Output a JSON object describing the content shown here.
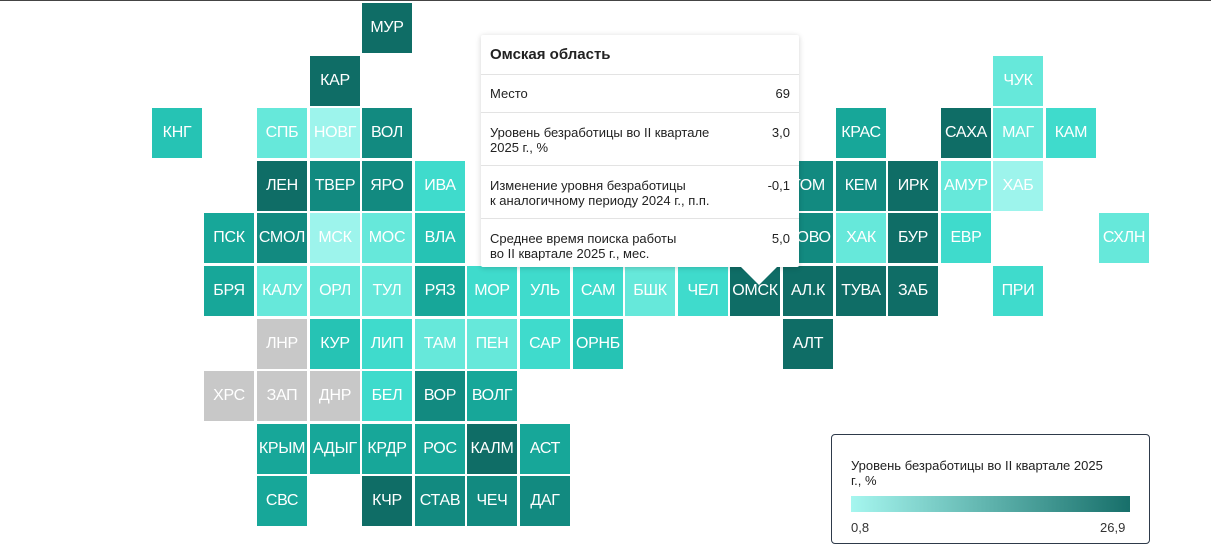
{
  "colors": {
    "c1": "#9df4ec",
    "c2": "#66e8da",
    "c3": "#3fdbcc",
    "c4": "#26c3b4",
    "c5": "#17a799",
    "c6": "#128a80",
    "c7": "#0f6d66",
    "gray": "#c8c8c8"
  },
  "tiles": [
    {
      "label": "МУР",
      "col": 7,
      "row": 0,
      "color": "c7"
    },
    {
      "label": "КАР",
      "col": 6,
      "row": 1,
      "color": "c7"
    },
    {
      "label": "ЧУК",
      "col": 19,
      "row": 1,
      "color": "c2"
    },
    {
      "label": "КНГ",
      "col": 3,
      "row": 2,
      "color": "c4"
    },
    {
      "label": "СПБ",
      "col": 5,
      "row": 2,
      "color": "c2"
    },
    {
      "label": "НОВГ",
      "col": 6,
      "row": 2,
      "color": "c1"
    },
    {
      "label": "ВОЛ",
      "col": 7,
      "row": 2,
      "color": "c6"
    },
    {
      "label": "КРАС",
      "col": 16,
      "row": 2,
      "color": "c5"
    },
    {
      "label": "САХА",
      "col": 18,
      "row": 2,
      "color": "c7"
    },
    {
      "label": "МАГ",
      "col": 19,
      "row": 2,
      "color": "c2"
    },
    {
      "label": "КАМ",
      "col": 20,
      "row": 2,
      "color": "c3"
    },
    {
      "label": "ЛЕН",
      "col": 5,
      "row": 3,
      "color": "c7"
    },
    {
      "label": "ТВЕР",
      "col": 6,
      "row": 3,
      "color": "c6"
    },
    {
      "label": "ЯРО",
      "col": 7,
      "row": 3,
      "color": "c6"
    },
    {
      "label": "ИВА",
      "col": 8,
      "row": 3,
      "color": "c3"
    },
    {
      "label": "ТОМ",
      "col": 15,
      "row": 3,
      "color": "c6"
    },
    {
      "label": "КЕМ",
      "col": 16,
      "row": 3,
      "color": "c6"
    },
    {
      "label": "ИРК",
      "col": 17,
      "row": 3,
      "color": "c7"
    },
    {
      "label": "АМУР",
      "col": 18,
      "row": 3,
      "color": "c2"
    },
    {
      "label": "ХАБ",
      "col": 19,
      "row": 3,
      "color": "c1"
    },
    {
      "label": "ПСК",
      "col": 4,
      "row": 4,
      "color": "c5"
    },
    {
      "label": "СМОЛ",
      "col": 5,
      "row": 4,
      "color": "c6"
    },
    {
      "label": "МСК",
      "col": 6,
      "row": 4,
      "color": "c1"
    },
    {
      "label": "МОС",
      "col": 7,
      "row": 4,
      "color": "c2"
    },
    {
      "label": "ВЛА",
      "col": 8,
      "row": 4,
      "color": "c4"
    },
    {
      "label": "НОВО",
      "col": 15,
      "row": 4,
      "color": "c6"
    },
    {
      "label": "ХАК",
      "col": 16,
      "row": 4,
      "color": "c2"
    },
    {
      "label": "БУР",
      "col": 17,
      "row": 4,
      "color": "c7"
    },
    {
      "label": "ЕВР",
      "col": 18,
      "row": 4,
      "color": "c3"
    },
    {
      "label": "СХЛН",
      "col": 21,
      "row": 4,
      "color": "c2"
    },
    {
      "label": "БРЯ",
      "col": 4,
      "row": 5,
      "color": "c5"
    },
    {
      "label": "КАЛУ",
      "col": 5,
      "row": 5,
      "color": "c2"
    },
    {
      "label": "ОРЛ",
      "col": 6,
      "row": 5,
      "color": "c2"
    },
    {
      "label": "ТУЛ",
      "col": 7,
      "row": 5,
      "color": "c2"
    },
    {
      "label": "РЯЗ",
      "col": 8,
      "row": 5,
      "color": "c5"
    },
    {
      "label": "МОР",
      "col": 9,
      "row": 5,
      "color": "c3"
    },
    {
      "label": "УЛЬ",
      "col": 10,
      "row": 5,
      "color": "c3"
    },
    {
      "label": "САМ",
      "col": 11,
      "row": 5,
      "color": "c3"
    },
    {
      "label": "БШК",
      "col": 12,
      "row": 5,
      "color": "c2"
    },
    {
      "label": "ЧЕЛ",
      "col": 13,
      "row": 5,
      "color": "c3"
    },
    {
      "label": "ОМСК",
      "col": 14,
      "row": 5,
      "color": "c7",
      "highlight": true
    },
    {
      "label": "АЛ.К",
      "col": 15,
      "row": 5,
      "color": "c7"
    },
    {
      "label": "ТУВА",
      "col": 16,
      "row": 5,
      "color": "c7"
    },
    {
      "label": "ЗАБ",
      "col": 17,
      "row": 5,
      "color": "c7"
    },
    {
      "label": "ПРИ",
      "col": 19,
      "row": 5,
      "color": "c3"
    },
    {
      "label": "ЛНР",
      "col": 5,
      "row": 6,
      "color": "gray"
    },
    {
      "label": "КУР",
      "col": 6,
      "row": 6,
      "color": "c4"
    },
    {
      "label": "ЛИП",
      "col": 7,
      "row": 6,
      "color": "c3"
    },
    {
      "label": "ТАМ",
      "col": 8,
      "row": 6,
      "color": "c2"
    },
    {
      "label": "ПЕН",
      "col": 9,
      "row": 6,
      "color": "c2"
    },
    {
      "label": "САР",
      "col": 10,
      "row": 6,
      "color": "c3"
    },
    {
      "label": "ОРНБ",
      "col": 11,
      "row": 6,
      "color": "c4"
    },
    {
      "label": "АЛТ",
      "col": 15,
      "row": 6,
      "color": "c7"
    },
    {
      "label": "ХРС",
      "col": 4,
      "row": 7,
      "color": "gray"
    },
    {
      "label": "ЗАП",
      "col": 5,
      "row": 7,
      "color": "gray"
    },
    {
      "label": "ДНР",
      "col": 6,
      "row": 7,
      "color": "gray"
    },
    {
      "label": "БЕЛ",
      "col": 7,
      "row": 7,
      "color": "c3"
    },
    {
      "label": "ВОР",
      "col": 8,
      "row": 7,
      "color": "c6"
    },
    {
      "label": "ВОЛГ",
      "col": 9,
      "row": 7,
      "color": "c5"
    },
    {
      "label": "КРЫМ",
      "col": 5,
      "row": 8,
      "color": "c5"
    },
    {
      "label": "АДЫГ",
      "col": 6,
      "row": 8,
      "color": "c5"
    },
    {
      "label": "КРДР",
      "col": 7,
      "row": 8,
      "color": "c5"
    },
    {
      "label": "РОС",
      "col": 8,
      "row": 8,
      "color": "c5"
    },
    {
      "label": "КАЛМ",
      "col": 9,
      "row": 8,
      "color": "c7"
    },
    {
      "label": "АСТ",
      "col": 10,
      "row": 8,
      "color": "c5"
    },
    {
      "label": "СВС",
      "col": 5,
      "row": 9,
      "color": "c5"
    },
    {
      "label": "КЧР",
      "col": 7,
      "row": 9,
      "color": "c7"
    },
    {
      "label": "СТАВ",
      "col": 8,
      "row": 9,
      "color": "c6"
    },
    {
      "label": "ЧЕЧ",
      "col": 9,
      "row": 9,
      "color": "c6"
    },
    {
      "label": "ДАГ",
      "col": 10,
      "row": 9,
      "color": "c6"
    }
  ],
  "tooltip": {
    "title": "Омская область",
    "rows": [
      {
        "label": "Место",
        "value": "69"
      },
      {
        "label": "Уровень безработицы во II квартале\n2025 г., %",
        "value": "3,0"
      },
      {
        "label": "Изменение уровня безработицы\nк аналогичному периоду 2024 г., п.п.",
        "value": "-0,1"
      },
      {
        "label": "Среднее время поиска работы\nво II квартале 2025 г., мес.",
        "value": "5,0"
      }
    ]
  },
  "legend": {
    "title": "Уровень безработицы во II квартале 2025 г., %",
    "min": "0,8",
    "max": "26,9",
    "color_min": "#a6f6ef",
    "color_max": "#176f6a"
  }
}
